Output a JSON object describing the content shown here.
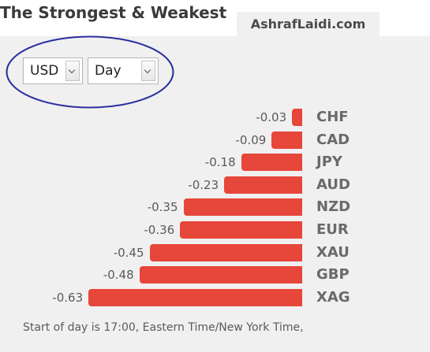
{
  "header": {
    "title": "The Strongest & Weakest",
    "source": "AshrafLaidi.com"
  },
  "controls": {
    "currency": {
      "selected": "USD"
    },
    "period": {
      "selected": "Day"
    }
  },
  "colors": {
    "bar": "#e7463a",
    "highlight_ellipse": "#2b2f9e",
    "panel_background": "#f0f0f0"
  },
  "chart_data": {
    "type": "bar",
    "orientation": "horizontal",
    "categories": [
      "CHF",
      "CAD",
      "JPY",
      "AUD",
      "NZD",
      "EUR",
      "XAU",
      "GBP",
      "XAG"
    ],
    "values": [
      -0.03,
      -0.09,
      -0.18,
      -0.23,
      -0.35,
      -0.36,
      -0.45,
      -0.48,
      -0.63
    ],
    "labels": [
      "-0.03",
      "-0.09",
      "-0.18",
      "-0.23",
      "-0.35",
      "-0.36",
      "-0.45",
      "-0.48",
      "-0.63"
    ],
    "title": "",
    "xlabel": "",
    "ylabel": "",
    "grid": false
  },
  "footer": {
    "note": "Start of day is 17:00, Eastern Time/New York Time,"
  }
}
